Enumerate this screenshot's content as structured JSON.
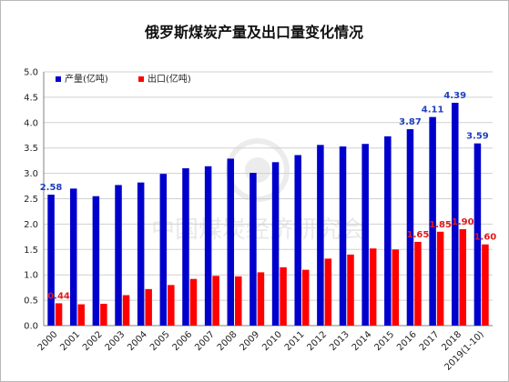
{
  "chart_data": {
    "type": "bar",
    "title": "俄罗斯煤炭产量及出口量变化情况",
    "xlabel": "",
    "ylabel": "",
    "ylim": [
      0,
      5.0
    ],
    "yticks": [
      "0.0",
      "0.5",
      "1.0",
      "1.5",
      "2.0",
      "2.5",
      "3.0",
      "3.5",
      "4.0",
      "4.5",
      "5.0"
    ],
    "grid": true,
    "legend_position": "top-left",
    "categories": [
      "2000",
      "2001",
      "2002",
      "2003",
      "2004",
      "2005",
      "2006",
      "2007",
      "2008",
      "2009",
      "2010",
      "2011",
      "2012",
      "2013",
      "2014",
      "2015",
      "2016",
      "2017",
      "2018",
      "2019(1-10)"
    ],
    "series": [
      {
        "name": "产量(亿吨)",
        "color": "#0000cc",
        "values": [
          2.58,
          2.7,
          2.55,
          2.77,
          2.82,
          2.99,
          3.1,
          3.14,
          3.29,
          3.01,
          3.22,
          3.36,
          3.56,
          3.53,
          3.58,
          3.73,
          3.87,
          4.11,
          4.39,
          3.59
        ],
        "labels": [
          {
            "index": 0,
            "text": "2.58"
          },
          {
            "index": 16,
            "text": "3.87"
          },
          {
            "index": 17,
            "text": "4.11"
          },
          {
            "index": 18,
            "text": "4.39"
          },
          {
            "index": 19,
            "text": "3.59"
          }
        ]
      },
      {
        "name": "出口(亿吨)",
        "color": "#ff0000",
        "values": [
          0.44,
          0.42,
          0.43,
          0.6,
          0.72,
          0.8,
          0.92,
          0.98,
          0.97,
          1.05,
          1.15,
          1.1,
          1.32,
          1.4,
          1.52,
          1.5,
          1.65,
          1.85,
          1.9,
          1.6
        ],
        "labels": [
          {
            "index": 0,
            "text": "0.44"
          },
          {
            "index": 16,
            "text": "1.65"
          },
          {
            "index": 17,
            "text": "1.85"
          },
          {
            "index": 18,
            "text": "1.90"
          },
          {
            "index": 19,
            "text": "1.60"
          }
        ]
      }
    ]
  },
  "watermark": "中国煤炭经济研究会"
}
